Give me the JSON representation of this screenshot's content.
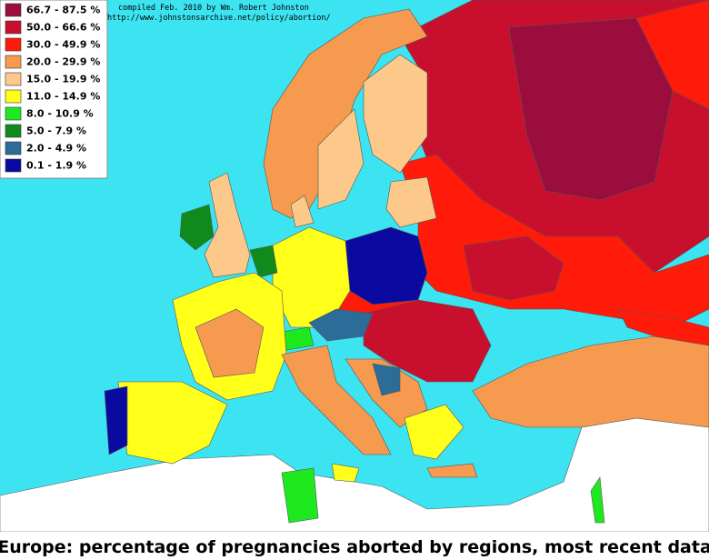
{
  "legend": {
    "items": [
      {
        "label": "66.7 - 87.5 %",
        "color": "#9b0d3c"
      },
      {
        "label": "50.0 - 66.6 %",
        "color": "#c8102e"
      },
      {
        "label": "30.0 - 49.9 %",
        "color": "#ff1a0a"
      },
      {
        "label": "20.0 - 29.9 %",
        "color": "#f59a4e"
      },
      {
        "label": "15.0 - 19.9 %",
        "color": "#fdc98a"
      },
      {
        "label": "11.0 - 14.9 %",
        "color": "#ffff1a"
      },
      {
        "label": "8.0 - 10.9 %",
        "color": "#1ee81e"
      },
      {
        "label": "5.0 -  7.9 %",
        "color": "#108a1c"
      },
      {
        "label": "2.0 -  4.9 %",
        "color": "#2b6c98"
      },
      {
        "label": "0.1 -  1.9 %",
        "color": "#0a0aa0"
      }
    ]
  },
  "credit": {
    "line1": "compiled Feb. 2010 by Wm. Robert Johnston",
    "line2": "http://www.johnstonsarchive.net/policy/abortion/"
  },
  "title": "Europe:  percentage of pregnancies aborted by regions, most recent data"
}
